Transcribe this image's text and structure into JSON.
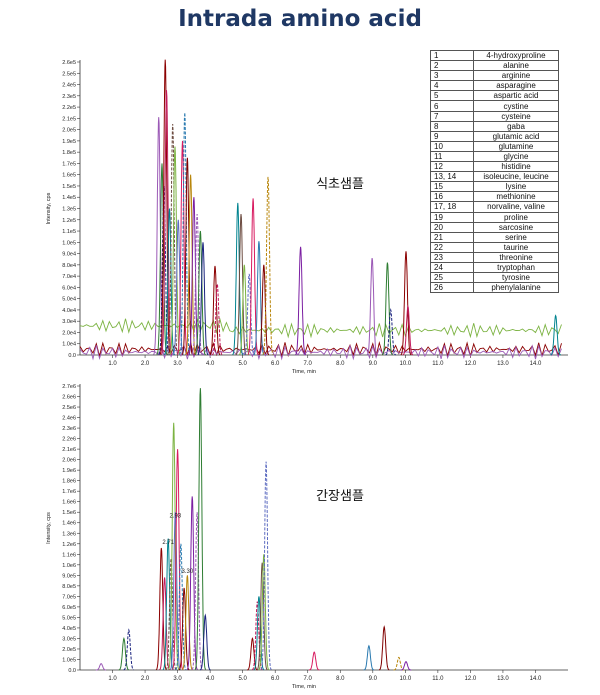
{
  "title": "Intrada amino acid",
  "legend": [
    {
      "num": "1",
      "name": "4-hydroxyproline"
    },
    {
      "num": "2",
      "name": "alanine"
    },
    {
      "num": "3",
      "name": "arginine"
    },
    {
      "num": "4",
      "name": "asparagine"
    },
    {
      "num": "5",
      "name": "aspartic acid"
    },
    {
      "num": "6",
      "name": "cystine"
    },
    {
      "num": "7",
      "name": "cysteine"
    },
    {
      "num": "8",
      "name": "gaba"
    },
    {
      "num": "9",
      "name": "glutamic acid"
    },
    {
      "num": "10",
      "name": "glutamine"
    },
    {
      "num": "11",
      "name": "glycine"
    },
    {
      "num": "12",
      "name": "histidine"
    },
    {
      "num": "13, 14",
      "name": "isoleucine, leucine"
    },
    {
      "num": "15",
      "name": "lysine"
    },
    {
      "num": "16",
      "name": "methionine"
    },
    {
      "num": "17, 18",
      "name": "norvaline, valine"
    },
    {
      "num": "19",
      "name": "proline"
    },
    {
      "num": "20",
      "name": "sarcosine"
    },
    {
      "num": "21",
      "name": "serine"
    },
    {
      "num": "22",
      "name": "taurine"
    },
    {
      "num": "23",
      "name": "threonine"
    },
    {
      "num": "24",
      "name": "tryptophan"
    },
    {
      "num": "25",
      "name": "tyrosine"
    },
    {
      "num": "26",
      "name": "phenylalanine"
    }
  ],
  "palette": [
    "#9b59b6",
    "#2e7d32",
    "#1a237e",
    "#8b0000",
    "#c2185b",
    "#00838f",
    "#6d4c41",
    "#7cb342",
    "#5c6bc0",
    "#d81b60",
    "#2a7ab0",
    "#800000",
    "#b8860b",
    "#7b1fa2"
  ],
  "chart_data": [
    {
      "type": "line",
      "annotation": "식초샘플",
      "xlabel": "Time, min",
      "ylabel": "Intensity, cps",
      "xlim": [
        0,
        15
      ],
      "ylim": [
        0,
        260000.0
      ],
      "xticks": [
        "1.0",
        "2.0",
        "3.0",
        "4.0",
        "5.0",
        "6.0",
        "7.0",
        "8.0",
        "9.0",
        "10.0",
        "11.0",
        "12.0",
        "13.0",
        "14.0"
      ],
      "yticks": [
        "0.0",
        "1.0e4",
        "2.0e4",
        "3.0e4",
        "4.0e4",
        "5.0e4",
        "6.0e4",
        "7.0e4",
        "8.0e4",
        "9.0e4",
        "1.0e5",
        "1.1e5",
        "1.2e5",
        "1.3e5",
        "1.4e5",
        "1.5e5",
        "1.6e5",
        "1.7e5",
        "1.8e5",
        "1.9e5",
        "2.0e5",
        "2.1e5",
        "2.2e5",
        "2.3e5",
        "2.4e5",
        "2.5e5",
        "2.6e5"
      ],
      "baselines": [
        {
          "color": "#7cb342",
          "level": 26000,
          "from": 0,
          "to": 14.8,
          "descend_to": 22000
        },
        {
          "color": "#8b0000",
          "level": 5000,
          "from": 0,
          "to": 14.8
        },
        {
          "color": "#9b59b6",
          "level": 2500,
          "from": 0,
          "to": 14.8
        }
      ],
      "peaks": [
        {
          "x": 2.42,
          "h": 211000
        },
        {
          "x": 2.52,
          "h": 170000
        },
        {
          "x": 2.58,
          "h": 150000
        },
        {
          "x": 2.62,
          "h": 262000
        },
        {
          "x": 2.66,
          "h": 235000
        },
        {
          "x": 2.75,
          "h": 130000
        },
        {
          "x": 2.85,
          "h": 205000
        },
        {
          "x": 2.92,
          "h": 185000
        },
        {
          "x": 3.02,
          "h": 120000
        },
        {
          "x": 3.15,
          "h": 190000
        },
        {
          "x": 3.22,
          "h": 215000
        },
        {
          "x": 3.3,
          "h": 175000
        },
        {
          "x": 3.4,
          "h": 160000
        },
        {
          "x": 3.5,
          "h": 140000
        },
        {
          "x": 3.6,
          "h": 125000
        },
        {
          "x": 3.7,
          "h": 110000
        },
        {
          "x": 3.78,
          "h": 100000
        },
        {
          "x": 4.15,
          "h": 79000
        },
        {
          "x": 4.22,
          "h": 63000
        },
        {
          "x": 4.85,
          "h": 135000
        },
        {
          "x": 4.95,
          "h": 125000
        },
        {
          "x": 5.05,
          "h": 80000
        },
        {
          "x": 5.2,
          "h": 72000
        },
        {
          "x": 5.32,
          "h": 139000
        },
        {
          "x": 5.5,
          "h": 101000
        },
        {
          "x": 5.65,
          "h": 80000
        },
        {
          "x": 5.78,
          "h": 158000
        },
        {
          "x": 6.78,
          "h": 96000
        },
        {
          "x": 8.98,
          "h": 86000
        },
        {
          "x": 9.45,
          "h": 82000
        },
        {
          "x": 9.55,
          "h": 40000
        },
        {
          "x": 10.02,
          "h": 92000
        },
        {
          "x": 10.08,
          "h": 43000
        },
        {
          "x": 14.62,
          "h": 35000
        }
      ]
    },
    {
      "type": "line",
      "annotation": "간장샘플",
      "xlabel": "Time, min",
      "ylabel": "Intensity, cps",
      "xlim": [
        0,
        15
      ],
      "ylim": [
        0,
        2700000.0
      ],
      "xticks": [
        "1.0",
        "2.0",
        "3.0",
        "4.0",
        "5.0",
        "6.0",
        "7.0",
        "8.0",
        "9.0",
        "10.0",
        "11.0",
        "12.0",
        "13.0",
        "14.0"
      ],
      "yticks": [
        "0.0",
        "1.0e5",
        "2.0e5",
        "3.0e5",
        "4.0e5",
        "5.0e5",
        "6.0e5",
        "7.0e5",
        "8.0e5",
        "9.0e5",
        "1.0e6",
        "1.1e6",
        "1.2e6",
        "1.3e6",
        "1.4e6",
        "1.5e6",
        "1.6e6",
        "1.7e6",
        "1.8e6",
        "1.9e6",
        "2.0e6",
        "2.1e6",
        "2.2e6",
        "2.3e6",
        "2.4e6",
        "2.5e6",
        "2.6e6",
        "2.7e6"
      ],
      "baselines": [],
      "peak_labels": [
        {
          "x": 2.71,
          "y": 1200000.0,
          "text": "2.71"
        },
        {
          "x": 2.93,
          "y": 1450000.0,
          "text": "2.93"
        },
        {
          "x": 3.3,
          "y": 920000.0,
          "text": "3.30"
        }
      ],
      "peaks": [
        {
          "x": 0.65,
          "h": 60000
        },
        {
          "x": 1.35,
          "h": 300000
        },
        {
          "x": 1.5,
          "h": 380000
        },
        {
          "x": 2.5,
          "h": 1160000
        },
        {
          "x": 2.6,
          "h": 880000
        },
        {
          "x": 2.71,
          "h": 1250000
        },
        {
          "x": 2.8,
          "h": 1060000
        },
        {
          "x": 2.88,
          "h": 2350000
        },
        {
          "x": 2.93,
          "h": 1500000
        },
        {
          "x": 3.0,
          "h": 2100000
        },
        {
          "x": 3.1,
          "h": 1200000
        },
        {
          "x": 3.2,
          "h": 780000
        },
        {
          "x": 3.3,
          "h": 900000
        },
        {
          "x": 3.45,
          "h": 1650000
        },
        {
          "x": 3.6,
          "h": 1500000
        },
        {
          "x": 3.7,
          "h": 2680000
        },
        {
          "x": 3.85,
          "h": 520000
        },
        {
          "x": 5.3,
          "h": 300000
        },
        {
          "x": 5.45,
          "h": 650000
        },
        {
          "x": 5.5,
          "h": 700000
        },
        {
          "x": 5.6,
          "h": 1020000
        },
        {
          "x": 5.65,
          "h": 1100000
        },
        {
          "x": 5.72,
          "h": 1980000
        },
        {
          "x": 7.2,
          "h": 170000
        },
        {
          "x": 8.88,
          "h": 230000
        },
        {
          "x": 9.35,
          "h": 410000
        },
        {
          "x": 9.8,
          "h": 120000
        },
        {
          "x": 10.02,
          "h": 80000
        }
      ]
    }
  ]
}
